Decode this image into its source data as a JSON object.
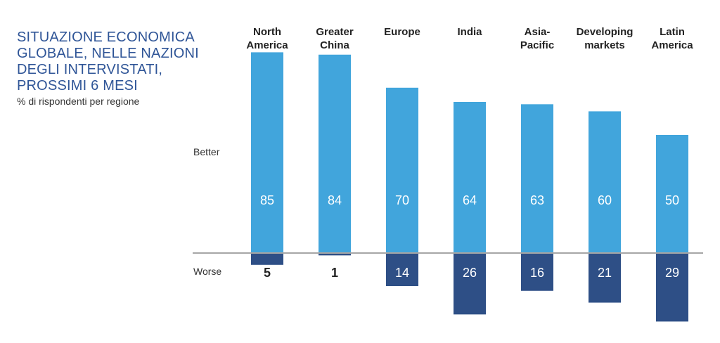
{
  "title": "SITUAZIONE ECONOMICA\nGLOBALE, NELLE NAZIONI\nDEGLI INTERVISTATI,\nPROSSIMI 6 MESI",
  "subtitle": "% di rispondenti per regione",
  "colors": {
    "better": "#41a5dc",
    "worse": "#2e4f86",
    "axis": "#a6a6a6",
    "title": "#2f5597",
    "text": "#333333"
  },
  "chart_data": {
    "type": "bar",
    "title": "SITUAZIONE ECONOMICA GLOBALE, NELLE NAZIONI DEGLI INTERVISTATI, PROSSIMI 6 MESI",
    "subtitle": "% di rispondenti per regione",
    "categories": [
      "North\nAmerica",
      "Greater\nChina",
      "Europe",
      "India",
      "Asia-\nPacific",
      "Developing\nmarkets",
      "Latin\nAmerica"
    ],
    "series": [
      {
        "name": "Better",
        "values": [
          85,
          84,
          70,
          64,
          63,
          60,
          50
        ]
      },
      {
        "name": "Worse",
        "values": [
          5,
          1,
          14,
          26,
          16,
          21,
          29
        ]
      }
    ],
    "ylim": [
      -30,
      90
    ],
    "grid": false,
    "legend": "left"
  }
}
